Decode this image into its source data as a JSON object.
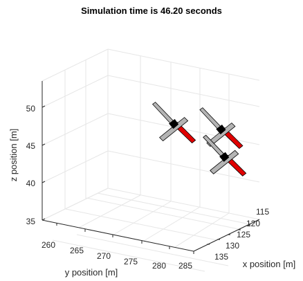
{
  "chart_data": {
    "type": "scatter",
    "title": "Simulation time is 46.20 seconds",
    "xlabel": "x position [m]",
    "ylabel": "y position [m]",
    "zlabel": "z position [m]",
    "x_ticks": [
      "115",
      "120",
      "125",
      "130",
      "135"
    ],
    "y_ticks": [
      "260",
      "265",
      "270",
      "275",
      "280",
      "285"
    ],
    "z_ticks": [
      "35",
      "40",
      "45",
      "50"
    ],
    "grid": true,
    "aircraft": [
      {
        "name": "",
        "x": 116,
        "y": 270,
        "z": 45.5
      },
      {
        "name": "",
        "x": 117,
        "y": 279,
        "z": 46.3
      },
      {
        "name": "",
        "x": 123,
        "y": 283,
        "z": 44.5
      }
    ],
    "colors": {
      "fuselage": "#e00000",
      "wing": "#b4b4b4",
      "nose": "#000000",
      "grid": "#e6e6e6",
      "axis": "#262626"
    }
  }
}
